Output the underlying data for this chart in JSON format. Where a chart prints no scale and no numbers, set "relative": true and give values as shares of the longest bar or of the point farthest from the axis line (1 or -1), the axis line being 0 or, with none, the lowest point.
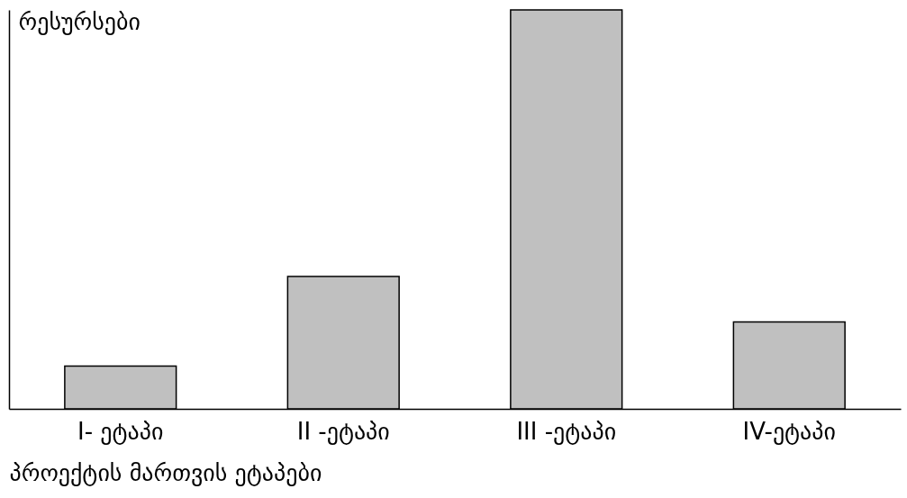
{
  "chart_data": {
    "type": "bar",
    "relative": true,
    "ylabel": "რესურსები",
    "xlabel": "პროექტის მართვის ეტაპები",
    "categories": [
      "I- ეტაპი",
      "II -ეტაპი",
      "III -ეტაპი",
      "IV-ეტაპი"
    ],
    "values": [
      0.107,
      0.332,
      1,
      0.218
    ],
    "color": "#c0c0c0",
    "grid": false
  }
}
